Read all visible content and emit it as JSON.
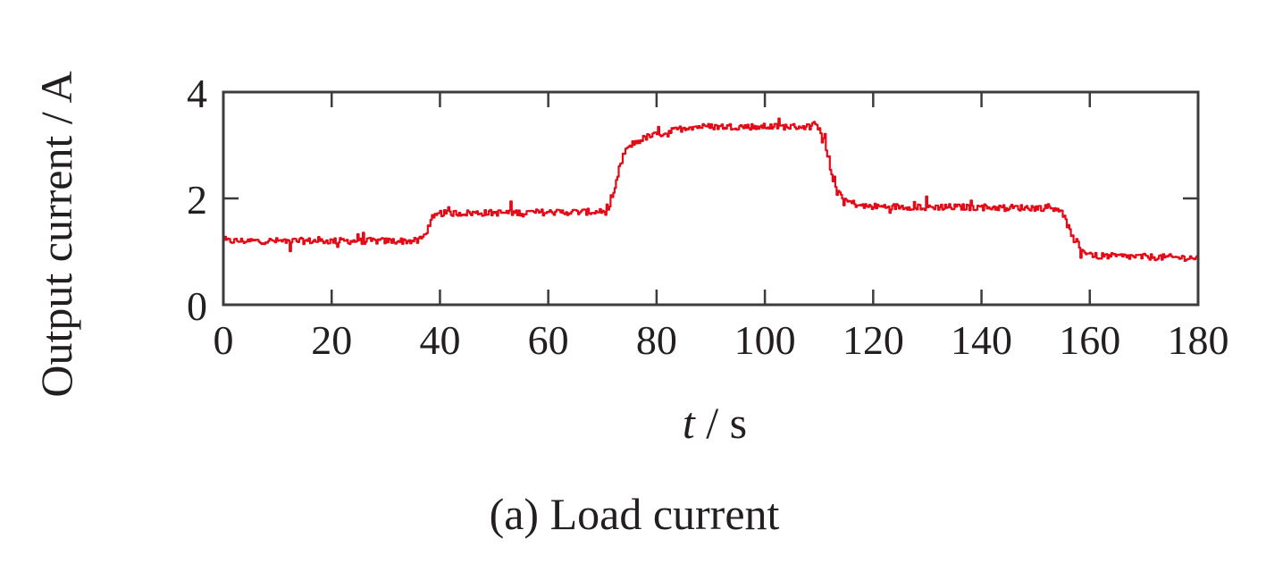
{
  "chart_data": {
    "type": "line",
    "title": "",
    "caption": "(a) Load current",
    "xlabel_var": "t",
    "xlabel_unit": " / s",
    "ylabel": "Output current / A",
    "xlim": [
      0,
      180
    ],
    "ylim": [
      0,
      4
    ],
    "xticks": [
      0,
      20,
      40,
      60,
      80,
      100,
      120,
      140,
      160,
      180
    ],
    "yticks": [
      0,
      2,
      4
    ],
    "grid": false,
    "series": [
      {
        "color": "#e30b17",
        "x": [
          0,
          36,
          37,
          38,
          39,
          40,
          71,
          72,
          73,
          74,
          75,
          78,
          82,
          86,
          110,
          111,
          112,
          113,
          115,
          118,
          154,
          155,
          156,
          157,
          158,
          161,
          180
        ],
        "y": [
          1.2,
          1.2,
          1.3,
          1.5,
          1.65,
          1.72,
          1.75,
          2.05,
          2.55,
          2.85,
          3.0,
          3.15,
          3.25,
          3.35,
          3.35,
          3.05,
          2.55,
          2.2,
          1.95,
          1.85,
          1.82,
          1.7,
          1.45,
          1.15,
          1.05,
          0.92,
          0.88
        ]
      }
    ]
  }
}
